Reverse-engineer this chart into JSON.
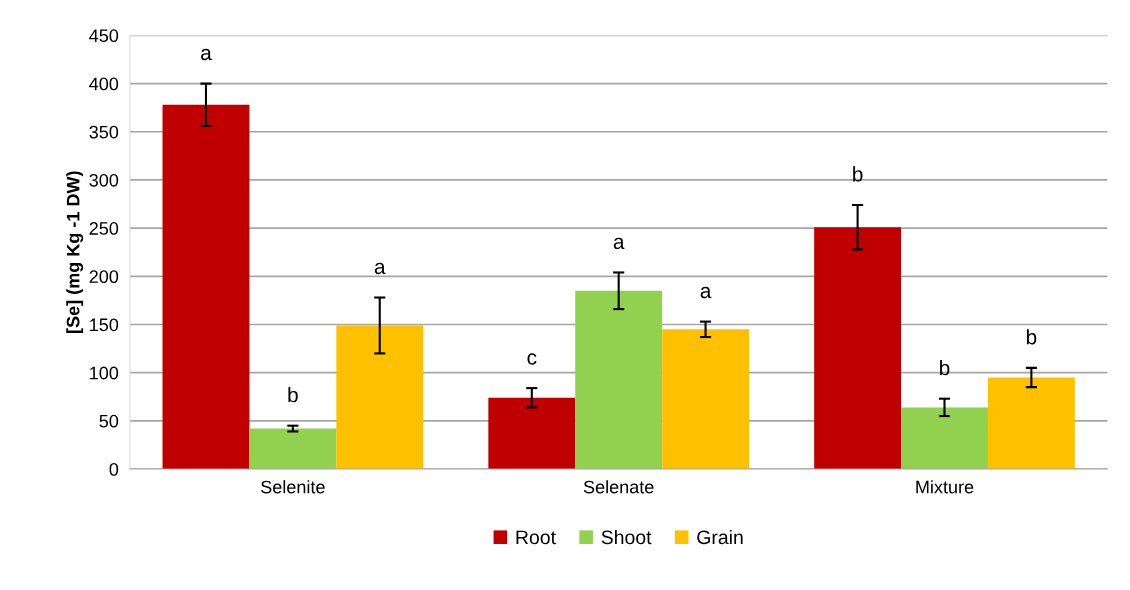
{
  "chart_data": {
    "type": "bar",
    "ylabel": "[Se] (mg Kg -1 DW)",
    "categories": [
      "Selenite",
      "Selenate",
      "Mixture"
    ],
    "series": [
      {
        "name": "Root",
        "color": "#c00000",
        "values": [
          378,
          74,
          251
        ],
        "errors": [
          22,
          10,
          23
        ],
        "value_labels": [
          "a",
          "c",
          "b"
        ]
      },
      {
        "name": "Shoot",
        "color": "#92d050",
        "values": [
          42,
          185,
          64
        ],
        "errors": [
          3,
          19,
          9
        ],
        "value_labels": [
          "b",
          "a",
          "b"
        ]
      },
      {
        "name": "Grain",
        "color": "#ffc000",
        "values": [
          149,
          145,
          95
        ],
        "errors": [
          29,
          8,
          10
        ],
        "value_labels": [
          "a",
          "a",
          "b"
        ]
      }
    ],
    "ylim": [
      0,
      450
    ],
    "yticks": [
      0,
      50,
      100,
      150,
      200,
      250,
      300,
      350,
      400,
      450
    ],
    "grid": "y",
    "legend": "bottom"
  }
}
